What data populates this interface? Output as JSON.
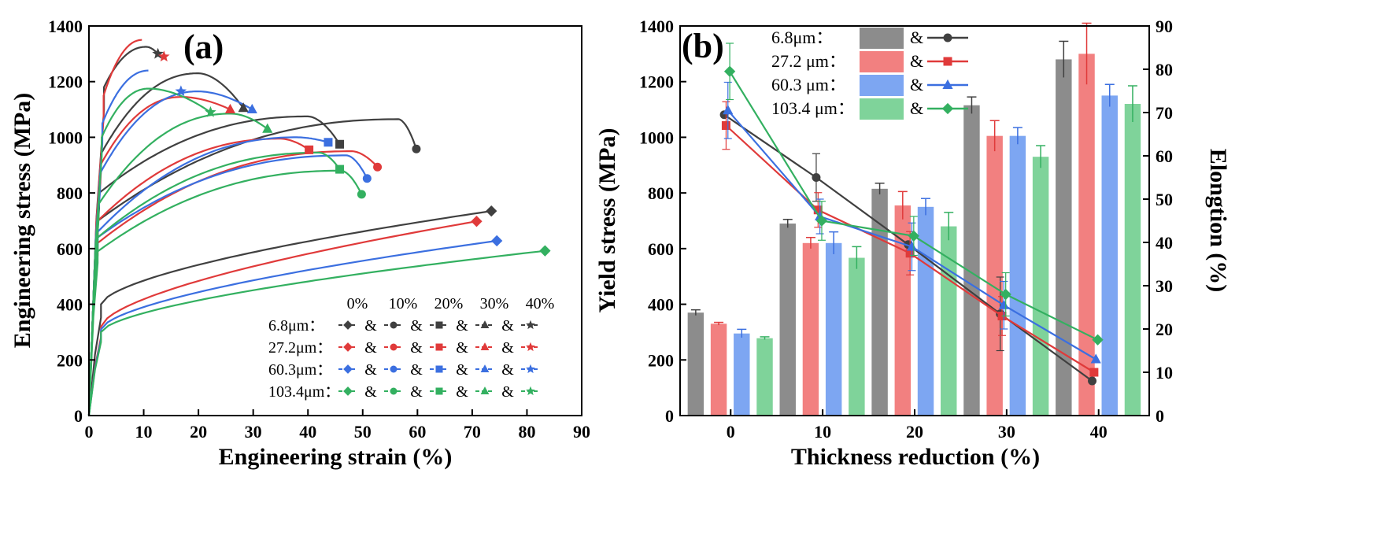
{
  "colors": {
    "6.8um": "#404040",
    "27.2um": "#e03a3a",
    "60.3um": "#3b6fe0",
    "103.4um": "#33b060",
    "bar_6.8um": "#8c8c8c",
    "bar_27.2um": "#f28080",
    "bar_60.3um": "#7da6f2",
    "bar_103.4um": "#7fd39a"
  },
  "chart_data": [
    {
      "type": "line",
      "panel": "(a)",
      "xlabel": "Engineering strain (%)",
      "ylabel": "Engineering stress (MPa)",
      "xlim": [
        0,
        90
      ],
      "ylim": [
        0,
        1400
      ],
      "xticks": [
        "0",
        "10",
        "20",
        "30",
        "40",
        "50",
        "60",
        "70",
        "80",
        "90"
      ],
      "yticks": [
        "0",
        "200",
        "400",
        "600",
        "800",
        "1000",
        "1200",
        "1400"
      ],
      "legend": {
        "headers": [
          "0%",
          "10%",
          "20%",
          "30%",
          "40%"
        ],
        "rows": [
          {
            "label": "6.8μm：",
            "key": "6.8um",
            "sep": "&"
          },
          {
            "label": "27.2μm：",
            "key": "27.2um",
            "sep": "&"
          },
          {
            "label": "60.3μm：",
            "key": "60.3um",
            "sep": "&"
          },
          {
            "label": "103.4μm：",
            "key": "103.4um",
            "sep": "&"
          }
        ],
        "markers": [
          "diamond",
          "circle",
          "square",
          "triangle",
          "star"
        ]
      },
      "series": [
        {
          "grain": "6.8um",
          "reduction": "0%",
          "marker": "diamond",
          "yield": 400,
          "hard": 4,
          "end": [
            73.5,
            735
          ],
          "peak": null
        },
        {
          "grain": "6.8um",
          "reduction": "10%",
          "marker": "circle",
          "yield": 700,
          "peak": [
            56.5,
            1065
          ],
          "end": [
            59.8,
            958
          ]
        },
        {
          "grain": "6.8um",
          "reduction": "20%",
          "marker": "square",
          "yield": 800,
          "peak": [
            40,
            1075
          ],
          "end": [
            45.8,
            975
          ]
        },
        {
          "grain": "6.8um",
          "reduction": "30%",
          "marker": "triangle",
          "yield": 940,
          "peak": [
            20,
            1230
          ],
          "end": [
            28.2,
            1105
          ]
        },
        {
          "grain": "6.8um",
          "reduction": "40%",
          "marker": "star",
          "yield": 1180,
          "peak": [
            10.5,
            1325
          ],
          "end": [
            12.6,
            1300
          ]
        },
        {
          "grain": "27.2um",
          "reduction": "0%",
          "marker": "diamond",
          "yield": 320,
          "hard": 3,
          "end": [
            70.8,
            698
          ],
          "peak": null
        },
        {
          "grain": "27.2um",
          "reduction": "10%",
          "marker": "circle",
          "yield": 620,
          "peak": [
            48,
            950
          ],
          "end": [
            52.7,
            893
          ]
        },
        {
          "grain": "27.2um",
          "reduction": "20%",
          "marker": "square",
          "yield": 700,
          "peak": [
            35,
            995
          ],
          "end": [
            40.2,
            955
          ]
        },
        {
          "grain": "27.2um",
          "reduction": "30%",
          "marker": "triangle",
          "yield": 900,
          "peak": [
            17,
            1145
          ],
          "end": [
            25.8,
            1100
          ]
        },
        {
          "grain": "27.2um",
          "reduction": "40%",
          "marker": "star",
          "yield": 1150,
          "peak": [
            9.8,
            1350
          ],
          "end": [
            13.7,
            1290
          ]
        },
        {
          "grain": "60.3um",
          "reduction": "0%",
          "marker": "diamond",
          "yield": 310,
          "hard": 3,
          "end": [
            74.5,
            628
          ],
          "peak": null
        },
        {
          "grain": "60.3um",
          "reduction": "10%",
          "marker": "circle",
          "yield": 640,
          "peak": [
            47,
            935
          ],
          "end": [
            50.8,
            852
          ]
        },
        {
          "grain": "60.3um",
          "reduction": "20%",
          "marker": "square",
          "yield": 660,
          "peak": [
            38,
            1000
          ],
          "end": [
            43.7,
            982
          ]
        },
        {
          "grain": "60.3um",
          "reduction": "30%",
          "marker": "triangle",
          "yield": 870,
          "peak": [
            20,
            1165
          ],
          "end": [
            29.8,
            1100
          ]
        },
        {
          "grain": "60.3um",
          "reduction": "40%",
          "marker": "star",
          "yield": 1050,
          "peak": [
            11,
            1240
          ],
          "end": [
            16.8,
            1165
          ]
        },
        {
          "grain": "103.4um",
          "reduction": "0%",
          "marker": "diamond",
          "yield": 300,
          "hard": 3,
          "end": [
            83.3,
            592
          ],
          "peak": null
        },
        {
          "grain": "103.4um",
          "reduction": "10%",
          "marker": "circle",
          "yield": 590,
          "peak": [
            46,
            880
          ],
          "end": [
            49.8,
            795
          ]
        },
        {
          "grain": "103.4um",
          "reduction": "20%",
          "marker": "square",
          "yield": 640,
          "peak": [
            42,
            945
          ],
          "end": [
            45.8,
            885
          ]
        },
        {
          "grain": "103.4um",
          "reduction": "30%",
          "marker": "triangle",
          "yield": 760,
          "peak": [
            26,
            1085
          ],
          "end": [
            32.6,
            1030
          ]
        },
        {
          "grain": "103.4um",
          "reduction": "40%",
          "marker": "star",
          "yield": 1000,
          "peak": [
            11,
            1175
          ],
          "end": [
            22.2,
            1090
          ]
        }
      ]
    },
    {
      "type": "bar",
      "panel": "(b)",
      "xlabel": "Thickness reduction (%)",
      "ylabel": "Yield stress (MPa)",
      "y2label": "Elongtion (%)",
      "ylim": [
        0,
        1400
      ],
      "y2lim": [
        0,
        90
      ],
      "xlim": [
        -5.5,
        45.5
      ],
      "xticks": [
        "0",
        "10",
        "20",
        "30",
        "40"
      ],
      "yticks": [
        "0",
        "200",
        "400",
        "600",
        "800",
        "1000",
        "1200",
        "1400"
      ],
      "y2ticks": [
        "0",
        "10",
        "20",
        "30",
        "40",
        "50",
        "60",
        "70",
        "80",
        "90"
      ],
      "categories": [
        0,
        10,
        20,
        30,
        40
      ],
      "legend": [
        {
          "label": "6.8μm：",
          "key": "6.8um",
          "sep": "&",
          "marker": "circle"
        },
        {
          "label": "27.2 μm：",
          "key": "27.2um",
          "sep": "&",
          "marker": "square"
        },
        {
          "label": "60.3 μm：",
          "key": "60.3um",
          "sep": "&",
          "marker": "triangle"
        },
        {
          "label": "103.4 μm：",
          "key": "103.4um",
          "sep": "&",
          "marker": "diamond"
        }
      ],
      "bar_offsets": [
        -3.8,
        -1.3,
        1.2,
        3.7
      ],
      "series": [
        {
          "name": "6.8um",
          "yield": [
            370,
            690,
            815,
            1115,
            1280
          ],
          "yield_err": [
            10,
            15,
            20,
            30,
            65
          ],
          "elongation": [
            69.5,
            55,
            39.5,
            23.5,
            8
          ],
          "elong_err": [
            0,
            5.5,
            0,
            8.5,
            0
          ]
        },
        {
          "name": "27.2um",
          "yield": [
            330,
            620,
            755,
            1005,
            1300
          ],
          "yield_err": [
            5,
            20,
            50,
            55,
            110
          ],
          "elongation": [
            67,
            47.5,
            37.5,
            23,
            10
          ],
          "elong_err": [
            5.5,
            4,
            5,
            4.5,
            0
          ]
        },
        {
          "name": "60.3um",
          "yield": [
            295,
            620,
            750,
            1005,
            1150
          ],
          "yield_err": [
            15,
            40,
            30,
            30,
            40
          ],
          "elongation": [
            70.5,
            46,
            39,
            25.5,
            13
          ],
          "elong_err": [
            6.5,
            4,
            5.5,
            5.5,
            0
          ]
        },
        {
          "name": "103.4um",
          "yield": [
            278,
            567,
            680,
            930,
            1120
          ],
          "yield_err": [
            5,
            40,
            50,
            40,
            65
          ],
          "elongation": [
            79.5,
            45,
            41.5,
            28,
            17.5
          ],
          "elong_err": [
            6.5,
            4.5,
            4.5,
            5,
            0
          ]
        }
      ]
    }
  ]
}
